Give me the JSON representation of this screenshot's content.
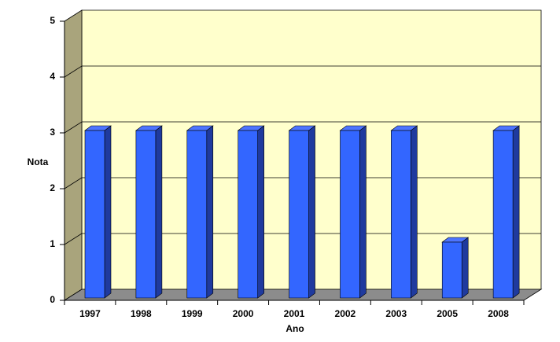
{
  "chart_data": {
    "type": "bar",
    "categories": [
      "1997",
      "1998",
      "1999",
      "2000",
      "2001",
      "2002",
      "2003",
      "2005",
      "2008"
    ],
    "values": [
      3,
      3,
      3,
      3,
      3,
      3,
      3,
      1,
      3
    ],
    "color": "#3366ff",
    "x_label": "Ano",
    "y_label": "Nota",
    "ylim": [
      0,
      5
    ],
    "yticks": [
      0,
      1,
      2,
      3,
      4,
      5
    ],
    "grid": true
  }
}
